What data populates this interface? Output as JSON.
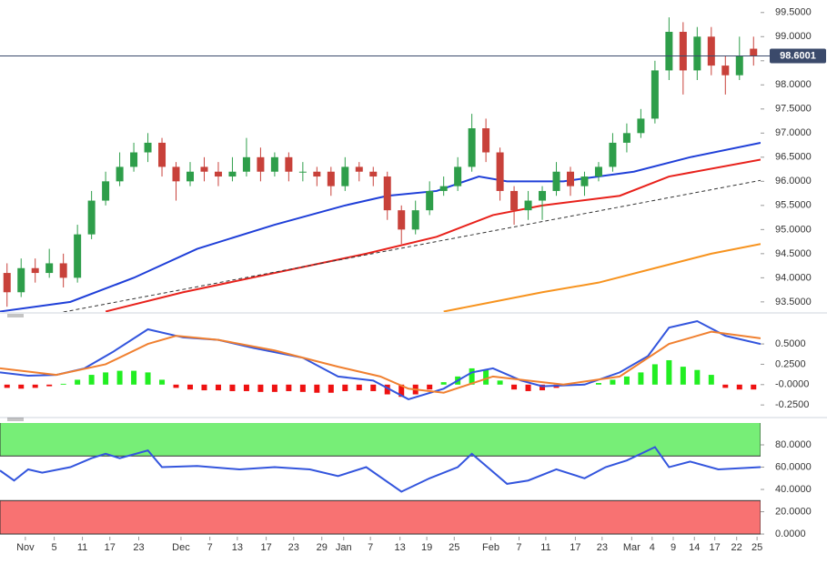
{
  "chart_data": [
    {
      "type": "candlestick",
      "xlim": [
        0,
        108
      ],
      "ylim": [
        93.29,
        99.76
      ],
      "yticks": [
        {
          "value": 93.5,
          "label": "93.5000"
        },
        {
          "value": 94.0,
          "label": "94.0000"
        },
        {
          "value": 94.5,
          "label": "94.5000"
        },
        {
          "value": 95.0,
          "label": "95.0000"
        },
        {
          "value": 95.5,
          "label": "95.5000"
        },
        {
          "value": 96.0,
          "label": "96.0000"
        },
        {
          "value": 96.5,
          "label": "96.5000"
        },
        {
          "value": 97.0,
          "label": "97.0000"
        },
        {
          "value": 97.5,
          "label": "97.5000"
        },
        {
          "value": 98.0,
          "label": "98.0000"
        },
        {
          "value": 98.5,
          "label": "98.5000"
        },
        {
          "value": 99.0,
          "label": "99.0000"
        },
        {
          "value": 99.5,
          "label": "99.5000"
        }
      ],
      "x": [
        1,
        3,
        5,
        7,
        9,
        11,
        13,
        15,
        17,
        19,
        21,
        23,
        25,
        27,
        29,
        31,
        33,
        35,
        37,
        39,
        41,
        43,
        45,
        47,
        49,
        51,
        53,
        55,
        57,
        59,
        61,
        63,
        65,
        67,
        69,
        71,
        73,
        75,
        77,
        79,
        81,
        83,
        85,
        87,
        89,
        91,
        93,
        95,
        97,
        99,
        101,
        103,
        105,
        107
      ],
      "open": [
        94.1,
        93.7,
        94.2,
        94.1,
        94.3,
        94.0,
        94.9,
        95.6,
        96.0,
        96.3,
        96.6,
        96.8,
        96.3,
        96.0,
        96.3,
        96.2,
        96.1,
        96.2,
        96.5,
        96.2,
        96.5,
        96.2,
        96.2,
        96.2,
        95.9,
        96.3,
        96.2,
        96.1,
        95.4,
        95.0,
        95.4,
        95.8,
        95.9,
        96.3,
        97.1,
        96.6,
        95.8,
        95.4,
        95.6,
        95.8,
        96.2,
        95.9,
        96.1,
        96.3,
        96.8,
        97.0,
        97.3,
        98.3,
        99.1,
        98.3,
        99.0,
        98.4,
        98.2,
        98.75
      ],
      "high": [
        94.3,
        94.4,
        94.4,
        94.6,
        94.5,
        95.1,
        95.8,
        96.2,
        96.6,
        96.8,
        97.0,
        96.9,
        96.4,
        96.4,
        96.5,
        96.4,
        96.5,
        96.9,
        96.7,
        96.6,
        96.6,
        96.4,
        96.3,
        96.3,
        96.5,
        96.4,
        96.3,
        96.2,
        95.5,
        95.6,
        96.0,
        96.1,
        96.5,
        97.4,
        97.3,
        96.7,
        95.9,
        95.8,
        95.9,
        96.4,
        96.3,
        96.2,
        96.4,
        97.0,
        97.2,
        97.5,
        98.5,
        99.4,
        99.3,
        99.2,
        99.2,
        98.6,
        99.0,
        99.0
      ],
      "low": [
        93.4,
        93.6,
        93.9,
        94.0,
        93.8,
        93.9,
        94.8,
        95.5,
        95.9,
        96.2,
        96.4,
        96.1,
        95.6,
        95.9,
        96.0,
        95.9,
        96.0,
        96.1,
        96.0,
        96.1,
        96.0,
        96.0,
        95.9,
        95.7,
        95.8,
        96.0,
        95.9,
        95.2,
        94.7,
        94.9,
        95.3,
        95.7,
        95.8,
        96.2,
        96.4,
        95.6,
        95.1,
        95.2,
        95.2,
        95.7,
        95.7,
        95.7,
        96.0,
        96.2,
        96.6,
        96.9,
        97.2,
        98.1,
        97.8,
        98.1,
        98.2,
        97.8,
        98.1,
        98.4
      ],
      "close": [
        93.7,
        94.2,
        94.1,
        94.3,
        94.0,
        94.9,
        95.6,
        96.0,
        96.3,
        96.6,
        96.8,
        96.3,
        96.0,
        96.2,
        96.2,
        96.1,
        96.2,
        96.5,
        96.2,
        96.5,
        96.2,
        96.2,
        96.1,
        95.9,
        96.3,
        96.2,
        96.1,
        95.4,
        95.0,
        95.4,
        95.8,
        95.9,
        96.3,
        97.1,
        96.6,
        95.8,
        95.4,
        95.6,
        95.8,
        96.2,
        95.9,
        96.1,
        96.3,
        96.8,
        97.0,
        97.3,
        98.3,
        99.1,
        98.3,
        99.0,
        98.4,
        98.2,
        98.6,
        98.6
      ],
      "up_color": "#2e9e4a",
      "down_color": "#c8413a",
      "lines": [
        {
          "color": "#1f3fd8",
          "x": [
            0,
            10,
            19,
            28,
            39,
            49,
            55,
            62,
            68,
            72,
            80,
            90,
            98,
            108
          ],
          "values": [
            93.3,
            93.5,
            94.0,
            94.6,
            95.1,
            95.5,
            95.7,
            95.8,
            96.1,
            96.0,
            96.0,
            96.2,
            96.5,
            96.8
          ]
        },
        {
          "color": "#e8211b",
          "x": [
            15,
            26,
            39,
            52,
            62,
            70,
            77,
            88,
            95,
            108
          ],
          "values": [
            93.3,
            93.7,
            94.1,
            94.5,
            94.85,
            95.3,
            95.5,
            95.7,
            96.1,
            96.45
          ]
        },
        {
          "color": "#f7931e",
          "x": [
            63,
            70,
            77,
            85,
            93,
            101,
            108
          ],
          "values": [
            93.3,
            93.5,
            93.7,
            93.9,
            94.2,
            94.5,
            94.7
          ]
        },
        {
          "color": "#333333",
          "dashed": true,
          "x": [
            9,
            108
          ],
          "values": [
            93.29,
            96.02
          ]
        }
      ],
      "last_price": 98.6001,
      "last_price_color": "#3b4a6b"
    },
    {
      "type": "macd",
      "xlim": [
        0,
        108
      ],
      "ylim": [
        -0.36,
        0.87
      ],
      "yticks": [
        {
          "value": 0.5,
          "label": "0.5000"
        },
        {
          "value": 0.25,
          "label": "0.2500"
        },
        {
          "value": 0,
          "label": "-0.0000"
        },
        {
          "value": -0.25,
          "label": "-0.2500"
        }
      ],
      "x": [
        1,
        3,
        5,
        7,
        9,
        11,
        13,
        15,
        17,
        19,
        21,
        23,
        25,
        27,
        29,
        31,
        33,
        35,
        37,
        39,
        41,
        43,
        45,
        47,
        49,
        51,
        53,
        55,
        57,
        59,
        61,
        63,
        65,
        67,
        69,
        71,
        73,
        75,
        77,
        79,
        81,
        83,
        85,
        87,
        89,
        91,
        93,
        95,
        97,
        99,
        101,
        103,
        105,
        107
      ],
      "histogram": [
        -0.04,
        -0.05,
        -0.04,
        -0.02,
        0.01,
        0.06,
        0.12,
        0.15,
        0.17,
        0.17,
        0.15,
        0.06,
        -0.04,
        -0.06,
        -0.07,
        -0.07,
        -0.08,
        -0.08,
        -0.09,
        -0.09,
        -0.08,
        -0.09,
        -0.1,
        -0.1,
        -0.08,
        -0.07,
        -0.08,
        -0.12,
        -0.15,
        -0.12,
        -0.06,
        0.03,
        0.1,
        0.2,
        0.18,
        0.05,
        -0.06,
        -0.08,
        -0.07,
        -0.04,
        -0.01,
        0.01,
        0.02,
        0.06,
        0.1,
        0.15,
        0.25,
        0.3,
        0.22,
        0.18,
        0.12,
        -0.04,
        -0.06,
        -0.06
      ],
      "up_color": "#22ee22",
      "down_color": "#ee1111",
      "lines": [
        {
          "color": "#3355dd",
          "x": [
            0,
            4,
            8,
            12,
            16,
            21,
            26,
            31,
            36,
            43,
            48,
            53,
            58,
            63,
            67,
            70,
            74,
            77,
            83,
            88,
            92,
            95,
            99,
            103,
            108
          ],
          "values": [
            0.15,
            0.11,
            0.12,
            0.2,
            0.4,
            0.68,
            0.58,
            0.55,
            0.45,
            0.33,
            0.1,
            0.05,
            -0.18,
            -0.05,
            0.15,
            0.2,
            0.05,
            -0.02,
            0.0,
            0.15,
            0.35,
            0.7,
            0.78,
            0.6,
            0.5
          ]
        },
        {
          "color": "#f08030",
          "x": [
            0,
            8,
            15,
            21,
            25,
            31,
            39,
            48,
            54,
            58,
            63,
            70,
            75,
            80,
            88,
            95,
            101,
            108
          ],
          "values": [
            0.2,
            0.12,
            0.25,
            0.5,
            0.6,
            0.55,
            0.42,
            0.22,
            0.1,
            -0.05,
            -0.1,
            0.1,
            0.05,
            0.0,
            0.1,
            0.5,
            0.65,
            0.57
          ]
        }
      ]
    },
    {
      "type": "rsi",
      "xlim": [
        0,
        108
      ],
      "ylim": [
        -2.4,
        99.6
      ],
      "yticks": [
        {
          "value": 80,
          "label": "80.0000"
        },
        {
          "value": 60,
          "label": "60.0000"
        },
        {
          "value": 40,
          "label": "40.0000"
        },
        {
          "value": 20,
          "label": "20.0000"
        },
        {
          "value": 0,
          "label": "0.0000"
        }
      ],
      "zones": [
        {
          "from": 70,
          "to": 100,
          "color": "#77ee77"
        },
        {
          "from": 0,
          "to": 30,
          "color": "#f87272"
        }
      ],
      "lines": [
        {
          "color": "#3355dd",
          "x": [
            0,
            2,
            4,
            6,
            10,
            13,
            15,
            17,
            21,
            23,
            28,
            34,
            39,
            44,
            48,
            52,
            57,
            61,
            65,
            67,
            72,
            75,
            79,
            83,
            86,
            89,
            93,
            95,
            98,
            102,
            108
          ],
          "values": [
            57,
            48,
            58,
            55,
            60,
            68,
            72,
            68,
            75,
            60,
            61,
            58,
            60,
            58,
            52,
            60,
            38,
            50,
            60,
            72,
            45,
            48,
            58,
            50,
            60,
            66,
            78,
            60,
            65,
            58,
            60
          ]
        }
      ],
      "xticks": [
        {
          "value": 3.6,
          "label": "Nov"
        },
        {
          "value": 7.7,
          "label": "5"
        },
        {
          "value": 11.7,
          "label": "11"
        },
        {
          "value": 15.6,
          "label": "17"
        },
        {
          "value": 19.7,
          "label": "23"
        },
        {
          "value": 25.7,
          "label": "Dec"
        },
        {
          "value": 29.8,
          "label": "7"
        },
        {
          "value": 33.7,
          "label": "13"
        },
        {
          "value": 37.8,
          "label": "17"
        },
        {
          "value": 41.7,
          "label": "23"
        },
        {
          "value": 45.7,
          "label": "29"
        },
        {
          "value": 48.8,
          "label": "Jan"
        },
        {
          "value": 52.6,
          "label": "7"
        },
        {
          "value": 56.8,
          "label": "13"
        },
        {
          "value": 60.6,
          "label": "19"
        },
        {
          "value": 64.5,
          "label": "25"
        },
        {
          "value": 69.7,
          "label": "Feb"
        },
        {
          "value": 73.7,
          "label": "7"
        },
        {
          "value": 77.5,
          "label": "11"
        },
        {
          "value": 81.7,
          "label": "17"
        },
        {
          "value": 85.5,
          "label": "23"
        },
        {
          "value": 89.7,
          "label": "Mar"
        },
        {
          "value": 92.6,
          "label": "4"
        },
        {
          "value": 95.6,
          "label": "9"
        },
        {
          "value": 98.6,
          "label": "14"
        },
        {
          "value": 101.5,
          "label": "17"
        },
        {
          "value": 104.6,
          "label": "22"
        },
        {
          "value": 107.5,
          "label": "25"
        }
      ]
    }
  ]
}
